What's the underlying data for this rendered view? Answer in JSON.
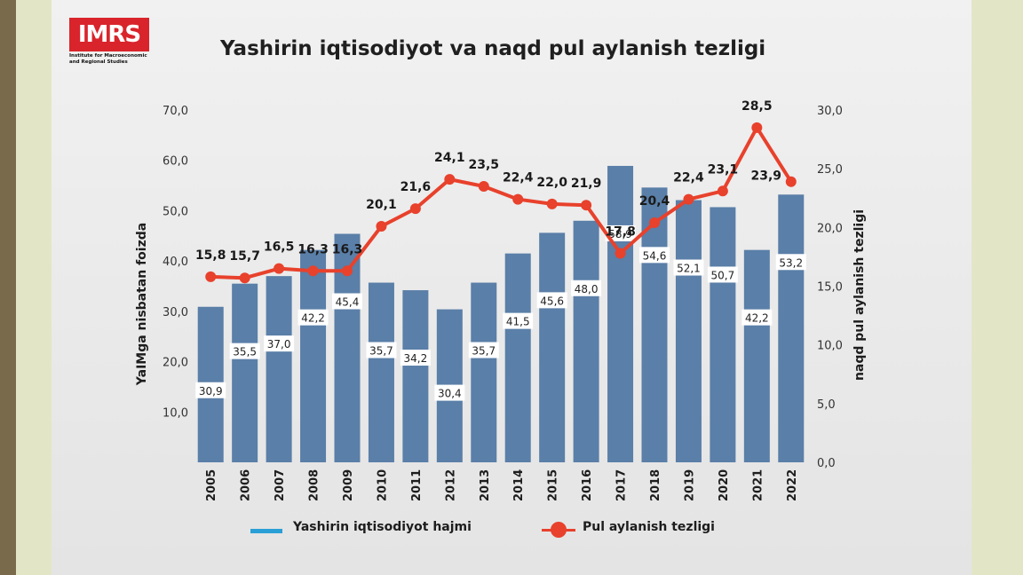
{
  "logo": {
    "text": "IMRS",
    "subtitle_line1": "Institute for Macroeconomic",
    "subtitle_line2": "and Regional Studies"
  },
  "chart_data": {
    "type": "bar",
    "title": "Yashirin iqtisodiyot va naqd pul aylanish tezligi",
    "categories": [
      "2005",
      "2006",
      "2007",
      "2008",
      "2009",
      "2010",
      "2011",
      "2012",
      "2013",
      "2014",
      "2015",
      "2016",
      "2017",
      "2018",
      "2019",
      "2020",
      "2021",
      "2022"
    ],
    "series": [
      {
        "name": "Yashirin iqtisodiyot hajmi",
        "type": "bar",
        "axis": "left",
        "values": [
          30.9,
          35.5,
          37.0,
          42.2,
          45.4,
          35.7,
          34.2,
          30.4,
          35.7,
          41.5,
          45.6,
          48.0,
          58.9,
          54.6,
          52.1,
          50.7,
          42.2,
          53.2
        ],
        "labels": [
          "30,9",
          "35,5",
          "37,0",
          "42,2",
          "45,4",
          "35,7",
          "34,2",
          "30,4",
          "35,7",
          "41,5",
          "45,6",
          "48,0",
          "58,9",
          "54,6",
          "52,1",
          "50,7",
          "42,2",
          "53,2"
        ]
      },
      {
        "name": "Pul aylanish tezligi",
        "type": "line",
        "axis": "right",
        "values": [
          15.8,
          15.7,
          16.5,
          16.3,
          16.3,
          20.1,
          21.6,
          24.1,
          23.5,
          22.4,
          22.0,
          21.9,
          17.8,
          20.4,
          22.4,
          23.1,
          28.5,
          23.9
        ],
        "labels": [
          "15,8",
          "15,7",
          "16,5",
          "16,3",
          "16,3",
          "20,1",
          "21,6",
          "24,1",
          "23,5",
          "22,4",
          "22,0",
          "21,9",
          "17,8",
          "20,4",
          "22,4",
          "23,1",
          "28,5",
          "23,9"
        ]
      }
    ],
    "ylabel": "YaIMga nisbatan foizda",
    "y2label": "naqd pul aylanish tezligi",
    "ylim": [
      0,
      70
    ],
    "y2lim": [
      0,
      30
    ],
    "yticks": [
      "10,0",
      "20,0",
      "30,0",
      "40,0",
      "50,0",
      "60,0",
      "70,0"
    ],
    "y2ticks": [
      "0,0",
      "5,0",
      "10,0",
      "15,0",
      "20,0",
      "25,0",
      "30,0"
    ],
    "grid": false,
    "legend": "bottom",
    "colors": {
      "bar": "#5a7fa8",
      "line": "#e8412c",
      "legend_bar": "#2a9fd6"
    }
  }
}
